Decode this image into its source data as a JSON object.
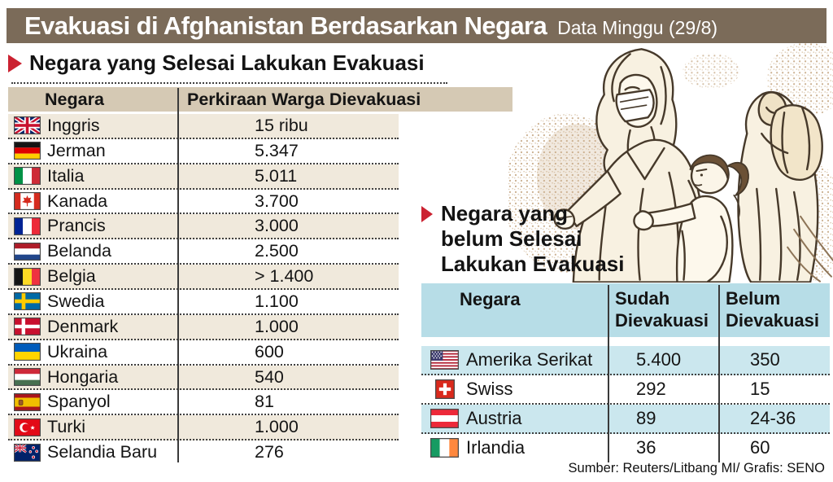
{
  "header": {
    "title": "Evakuasi di Afghanistan Berdasarkan Negara",
    "date_note": "Data Minggu (29/8)"
  },
  "completed_section": {
    "title": "Negara yang Selesai Lakukan Evakuasi",
    "columns": [
      "Negara",
      "Perkiraan Warga Dievakuasi"
    ],
    "rows": [
      {
        "country": "Inggris",
        "flag": "uk",
        "value": "15 ribu"
      },
      {
        "country": "Jerman",
        "flag": "de",
        "value": "5.347"
      },
      {
        "country": "Italia",
        "flag": "it",
        "value": "5.011"
      },
      {
        "country": "Kanada",
        "flag": "ca",
        "value": "3.700"
      },
      {
        "country": "Prancis",
        "flag": "fr",
        "value": "3.000"
      },
      {
        "country": "Belanda",
        "flag": "nl",
        "value": "2.500"
      },
      {
        "country": "Belgia",
        "flag": "be",
        "value": "> 1.400"
      },
      {
        "country": "Swedia",
        "flag": "se",
        "value": "1.100"
      },
      {
        "country": "Denmark",
        "flag": "dk",
        "value": "1.000"
      },
      {
        "country": "Ukraina",
        "flag": "ua",
        "value": "600"
      },
      {
        "country": "Hongaria",
        "flag": "hu",
        "value": "540"
      },
      {
        "country": "Spanyol",
        "flag": "es",
        "value": "81"
      },
      {
        "country": "Turki",
        "flag": "tr",
        "value": "1.000"
      },
      {
        "country": "Selandia Baru",
        "flag": "nz",
        "value": "276"
      }
    ]
  },
  "pending_section": {
    "title_lines": [
      "Negara yang",
      "belum Selesai",
      "Lakukan Evakuasi"
    ],
    "columns": [
      "Negara",
      "Sudah Dievakuasi",
      "Belum Dievakuasi"
    ],
    "rows": [
      {
        "country": "Amerika Serikat",
        "flag": "us",
        "evacuated": "5.400",
        "not_evacuated": "350"
      },
      {
        "country": "Swiss",
        "flag": "ch",
        "evacuated": "292",
        "not_evacuated": "15"
      },
      {
        "country": "Austria",
        "flag": "at",
        "evacuated": "89",
        "not_evacuated": "24-36"
      },
      {
        "country": "Irlandia",
        "flag": "ie",
        "evacuated": "36",
        "not_evacuated": "60"
      }
    ]
  },
  "source": "Sumber: Reuters/Litbang MI/ Grafis: SENO",
  "colors": {
    "header_bar": "#7b6b59",
    "table_header_tan": "#d5c9b4",
    "row_beige": "#f0e9dc",
    "table_header_blue": "#b7dde7",
    "row_blue": "#cbe7ee",
    "accent_red": "#cb2231"
  },
  "chart_data": [
    {
      "type": "table",
      "title": "Negara yang Selesai Lakukan Evakuasi",
      "columns": [
        "Negara",
        "Perkiraan Warga Dievakuasi"
      ],
      "rows": [
        [
          "Inggris",
          "15 ribu"
        ],
        [
          "Jerman",
          "5.347"
        ],
        [
          "Italia",
          "5.011"
        ],
        [
          "Kanada",
          "3.700"
        ],
        [
          "Prancis",
          "3.000"
        ],
        [
          "Belanda",
          "2.500"
        ],
        [
          "Belgia",
          "> 1.400"
        ],
        [
          "Swedia",
          "1.100"
        ],
        [
          "Denmark",
          "1.000"
        ],
        [
          "Ukraina",
          "600"
        ],
        [
          "Hongaria",
          "540"
        ],
        [
          "Spanyol",
          "81"
        ],
        [
          "Turki",
          "1.000"
        ],
        [
          "Selandia Baru",
          "276"
        ]
      ]
    },
    {
      "type": "table",
      "title": "Negara yang belum Selesai Lakukan Evakuasi",
      "columns": [
        "Negara",
        "Sudah Dievakuasi",
        "Belum Dievakuasi"
      ],
      "rows": [
        [
          "Amerika Serikat",
          "5.400",
          "350"
        ],
        [
          "Swiss",
          "292",
          "15"
        ],
        [
          "Austria",
          "89",
          "24-36"
        ],
        [
          "Irlandia",
          "36",
          "60"
        ]
      ]
    }
  ]
}
